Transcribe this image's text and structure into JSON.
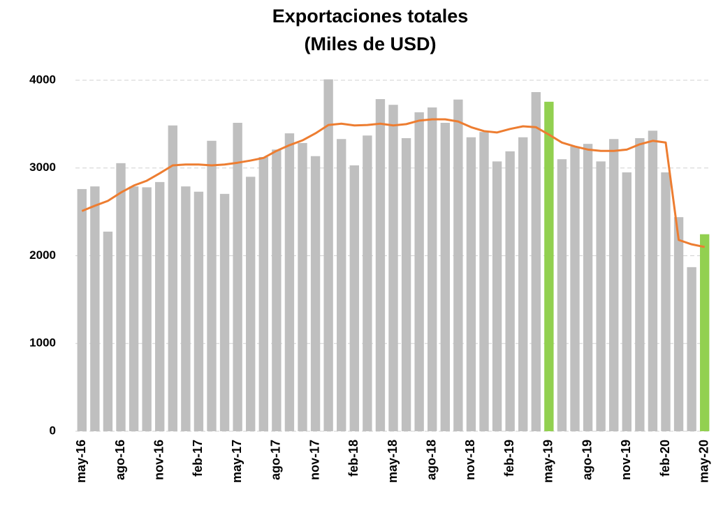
{
  "chart_data": {
    "type": "bar_line",
    "title": "Exportaciones  totales",
    "subtitle": "(Miles de USD)",
    "categories": [
      "may-16",
      null,
      null,
      "ago-16",
      null,
      null,
      "nov-16",
      null,
      null,
      "feb-17",
      null,
      null,
      "may-17",
      null,
      null,
      "ago-17",
      null,
      null,
      "nov-17",
      null,
      null,
      "feb-18",
      null,
      null,
      "may-18",
      null,
      null,
      "ago-18",
      null,
      null,
      "nov-18",
      null,
      null,
      "feb-19",
      null,
      null,
      "may-19",
      null,
      null,
      "ago-19",
      null,
      null,
      "nov-19",
      null,
      null,
      "feb-20",
      null,
      null,
      "may-20"
    ],
    "series": [
      {
        "type": "bar",
        "color": "#bfbfbf",
        "colors": [
          "#bfbfbf",
          "#bfbfbf",
          "#bfbfbf",
          "#bfbfbf",
          "#bfbfbf",
          "#bfbfbf",
          "#bfbfbf",
          "#bfbfbf",
          "#bfbfbf",
          "#bfbfbf",
          "#bfbfbf",
          "#bfbfbf",
          "#bfbfbf",
          "#bfbfbf",
          "#bfbfbf",
          "#bfbfbf",
          "#bfbfbf",
          "#bfbfbf",
          "#bfbfbf",
          "#bfbfbf",
          "#bfbfbf",
          "#bfbfbf",
          "#bfbfbf",
          "#bfbfbf",
          "#bfbfbf",
          "#bfbfbf",
          "#bfbfbf",
          "#bfbfbf",
          "#bfbfbf",
          "#bfbfbf",
          "#bfbfbf",
          "#bfbfbf",
          "#bfbfbf",
          "#bfbfbf",
          "#bfbfbf",
          "#bfbfbf",
          "#92d050",
          "#bfbfbf",
          "#bfbfbf",
          "#bfbfbf",
          "#bfbfbf",
          "#bfbfbf",
          "#bfbfbf",
          "#bfbfbf",
          "#bfbfbf",
          "#bfbfbf",
          "#bfbfbf",
          "#bfbfbf",
          "#92d050"
        ],
        "values": [
          2760,
          2790,
          2275,
          3055,
          2790,
          2780,
          2840,
          3485,
          2790,
          2730,
          3310,
          2705,
          3515,
          2900,
          3125,
          3210,
          3395,
          3285,
          3135,
          4010,
          3330,
          3030,
          3370,
          3785,
          3720,
          3340,
          3635,
          3690,
          3515,
          3780,
          3350,
          3410,
          3075,
          3190,
          3350,
          3865,
          3755,
          3100,
          3245,
          3275,
          3075,
          3330,
          2950,
          3340,
          3425,
          2950,
          2440,
          1870,
          2245
        ]
      },
      {
        "type": "line",
        "color": "#ed7d31",
        "values": [
          2510,
          2570,
          2625,
          2720,
          2800,
          2855,
          2940,
          3030,
          3040,
          3040,
          3030,
          3040,
          3060,
          3085,
          3115,
          3195,
          3260,
          3315,
          3395,
          3490,
          3505,
          3485,
          3490,
          3505,
          3485,
          3500,
          3540,
          3555,
          3555,
          3530,
          3465,
          3420,
          3405,
          3445,
          3475,
          3465,
          3380,
          3290,
          3245,
          3210,
          3195,
          3195,
          3210,
          3270,
          3310,
          3290,
          2180,
          2130,
          2100
        ]
      }
    ],
    "ylim": [
      0,
      4000
    ],
    "yticks": [
      0,
      1000,
      2000,
      3000,
      4000
    ],
    "grid": true
  }
}
